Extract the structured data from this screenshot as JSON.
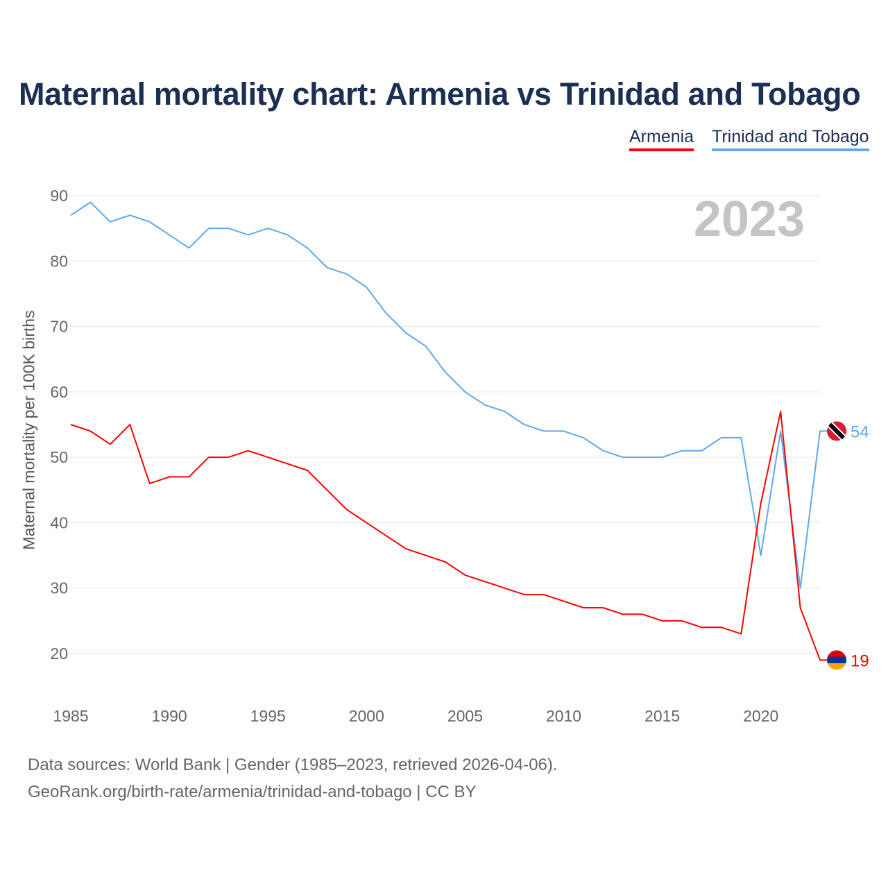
{
  "title": "Maternal mortality chart: Armenia vs Trinidad and Tobago",
  "year_label": "2023",
  "footer": {
    "line1": "Data sources: World Bank | Gender (1985–2023, retrieved 2026-04-06).",
    "line2": "GeoRank.org/birth-rate/armenia/trinidad-and-tobago | CC BY"
  },
  "chart_data": {
    "type": "line",
    "title": "Maternal mortality chart: Armenia vs Trinidad and Tobago",
    "xlabel": "",
    "ylabel": "Maternal mortality per 100K births",
    "xlim": [
      1985,
      2023
    ],
    "ylim": [
      20,
      90
    ],
    "xticks": [
      1985,
      1990,
      1995,
      2000,
      2005,
      2010,
      2015,
      2020
    ],
    "yticks": [
      20,
      30,
      40,
      50,
      60,
      70,
      80,
      90
    ],
    "grid": true,
    "legend_position": "top-right",
    "x": [
      1985,
      1986,
      1987,
      1988,
      1989,
      1990,
      1991,
      1992,
      1993,
      1994,
      1995,
      1996,
      1997,
      1998,
      1999,
      2000,
      2001,
      2002,
      2003,
      2004,
      2005,
      2006,
      2007,
      2008,
      2009,
      2010,
      2011,
      2012,
      2013,
      2014,
      2015,
      2016,
      2017,
      2018,
      2019,
      2020,
      2021,
      2022,
      2023
    ],
    "series": [
      {
        "name": "Armenia",
        "color": "#ff0000",
        "end_label": "19",
        "flag": "armenia-flag",
        "values": [
          55,
          54,
          52,
          55,
          46,
          47,
          47,
          50,
          50,
          51,
          50,
          49,
          48,
          45,
          42,
          40,
          38,
          36,
          35,
          34,
          32,
          31,
          30,
          29,
          29,
          28,
          27,
          27,
          26,
          26,
          25,
          25,
          24,
          24,
          23,
          43,
          57,
          27,
          19
        ]
      },
      {
        "name": "Trinidad and Tobago",
        "color": "#5ea8ec",
        "end_label": "54",
        "flag": "trinidad-and-tobago-flag",
        "values": [
          87,
          89,
          86,
          87,
          86,
          84,
          82,
          85,
          85,
          84,
          85,
          84,
          82,
          79,
          78,
          76,
          72,
          69,
          67,
          63,
          60,
          58,
          57,
          55,
          54,
          54,
          53,
          51,
          50,
          50,
          50,
          51,
          51,
          53,
          53,
          35,
          54,
          30,
          54
        ]
      }
    ]
  }
}
